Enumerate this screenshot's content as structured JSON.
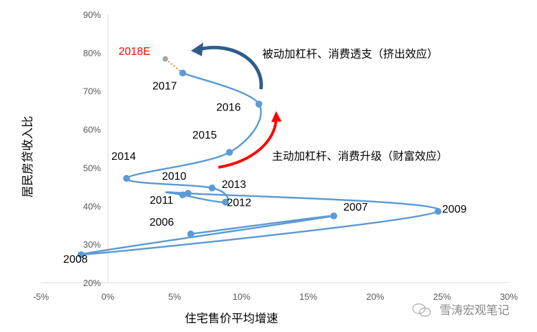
{
  "chart_data": {
    "type": "line",
    "xlabel": "住宅售价平均增速",
    "ylabel": "居民房贷收入比",
    "xlim": [
      -5,
      30
    ],
    "ylim": [
      20,
      90
    ],
    "xticks": [
      "-5%",
      "0%",
      "5%",
      "10%",
      "15%",
      "20%",
      "25%",
      "30%"
    ],
    "xtick_values": [
      -5,
      0,
      5,
      10,
      15,
      20,
      25,
      30
    ],
    "yticks": [
      "20%",
      "30%",
      "40%",
      "50%",
      "60%",
      "70%",
      "80%",
      "90%"
    ],
    "ytick_values": [
      20,
      30,
      40,
      50,
      60,
      70,
      80,
      90
    ],
    "grid": false,
    "series_color": "#5B9BD5",
    "points": [
      {
        "label": "2006",
        "x": 6.2,
        "y": 32.7
      },
      {
        "label": "2007",
        "x": 16.9,
        "y": 37.4
      },
      {
        "label": "2008",
        "x": -2.0,
        "y": 27.3
      },
      {
        "label": "2009",
        "x": 24.7,
        "y": 38.6
      },
      {
        "label": "2010",
        "x": 6.0,
        "y": 43.3
      },
      {
        "label": "2011",
        "x": 5.6,
        "y": 42.9
      },
      {
        "label": "2012",
        "x": 8.8,
        "y": 41.0
      },
      {
        "label": "2013",
        "x": 7.8,
        "y": 44.7
      },
      {
        "label": "2014",
        "x": 1.4,
        "y": 47.2
      },
      {
        "label": "2015",
        "x": 9.1,
        "y": 54.0
      },
      {
        "label": "2016",
        "x": 11.3,
        "y": 66.6
      },
      {
        "label": "2017",
        "x": 5.6,
        "y": 74.7
      }
    ],
    "forecast": {
      "label": "2018E",
      "x": 4.3,
      "y": 78.4,
      "color": "#ED7D31",
      "label_color": "#FF0000"
    },
    "annotations": [
      {
        "text": "被动加杠杆、消费透支（挤出效应）",
        "arrow_color": "#2E5D8C"
      },
      {
        "text": "主动加杠杆、消费升级（财富效应）",
        "arrow_color": "#FF0000"
      }
    ]
  },
  "watermark": "雪涛宏观笔记"
}
